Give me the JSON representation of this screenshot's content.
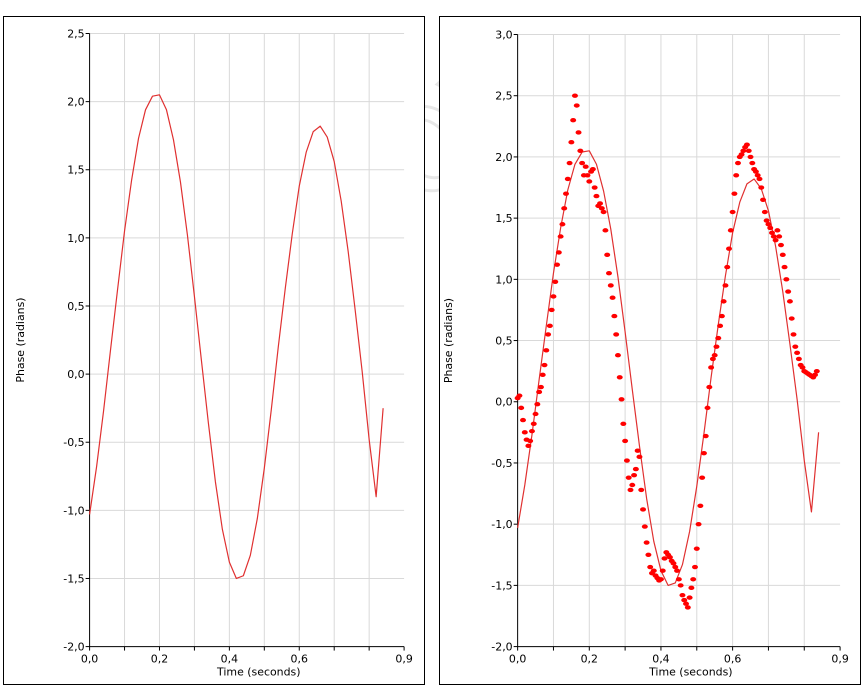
{
  "watermark": {
    "text": "buketov"
  },
  "colors": {
    "curve": "#e03030",
    "points": "#ff0000",
    "grid": "#d9d9d9",
    "axis": "#000000"
  },
  "chart_data": [
    {
      "type": "line",
      "title": "",
      "xlabel": "Time (seconds)",
      "ylabel": "Phase (radians)",
      "xlim": [
        0,
        0.9
      ],
      "ylim": [
        -2.0,
        2.5
      ],
      "x_ticks": [
        "0,0",
        "0,2",
        "0,4",
        "0,6",
        "0,9"
      ],
      "y_ticks": [
        "2,5",
        "2,0",
        "1,5",
        "1,0",
        "0,5",
        "0,0",
        "-0,5",
        "-1,0",
        "-1,5",
        "-2,0"
      ],
      "grid": true,
      "series": [
        {
          "x": [
            0,
            0.02,
            0.04,
            0.06,
            0.08,
            0.1,
            0.12,
            0.14,
            0.16,
            0.18,
            0.2,
            0.22,
            0.24,
            0.26,
            0.28,
            0.3,
            0.32,
            0.34,
            0.36,
            0.38,
            0.4,
            0.42,
            0.44,
            0.46,
            0.48,
            0.5,
            0.52,
            0.54,
            0.56,
            0.58,
            0.6,
            0.62,
            0.64,
            0.66,
            0.68,
            0.7,
            0.72,
            0.74,
            0.76,
            0.78,
            0.8,
            0.82,
            0.84
          ],
          "y": [
            -1.03,
            -0.68,
            -0.27,
            0.18,
            0.62,
            1.05,
            1.42,
            1.73,
            1.94,
            2.04,
            2.05,
            1.94,
            1.72,
            1.41,
            1.02,
            0.57,
            0.1,
            -0.36,
            -0.79,
            -1.14,
            -1.38,
            -1.5,
            -1.48,
            -1.33,
            -1.06,
            -0.69,
            -0.26,
            0.2,
            0.63,
            1.03,
            1.38,
            1.63,
            1.78,
            1.82,
            1.74,
            1.56,
            1.27,
            0.9,
            0.47,
            0.02,
            -0.48,
            -0.9,
            -0.25
          ]
        }
      ]
    },
    {
      "type": "scatter",
      "title": "",
      "xlabel": "Time (seconds)",
      "ylabel": "Phase (radians)",
      "xlim": [
        0,
        0.9
      ],
      "ylim": [
        -2.0,
        3.0
      ],
      "x_ticks": [
        "0,0",
        "0,2",
        "0,4",
        "0,6",
        "0,9"
      ],
      "y_ticks": [
        "3,0",
        "2,5",
        "2,0",
        "1,5",
        "1,0",
        "0,5",
        "0,0",
        "-0,5",
        "-1,0",
        "-1,5",
        "-2,0"
      ],
      "grid": true,
      "series": [
        {
          "type": "line",
          "x": [
            0,
            0.02,
            0.04,
            0.06,
            0.08,
            0.1,
            0.12,
            0.14,
            0.16,
            0.18,
            0.2,
            0.22,
            0.24,
            0.26,
            0.28,
            0.3,
            0.32,
            0.34,
            0.36,
            0.38,
            0.4,
            0.42,
            0.44,
            0.46,
            0.48,
            0.5,
            0.52,
            0.54,
            0.56,
            0.58,
            0.6,
            0.62,
            0.64,
            0.66,
            0.68,
            0.7,
            0.72,
            0.74,
            0.76,
            0.78,
            0.8,
            0.82,
            0.84
          ],
          "y": [
            -1.03,
            -0.68,
            -0.27,
            0.18,
            0.62,
            1.05,
            1.42,
            1.73,
            1.94,
            2.04,
            2.05,
            1.94,
            1.72,
            1.41,
            1.02,
            0.57,
            0.1,
            -0.36,
            -0.79,
            -1.14,
            -1.38,
            -1.5,
            -1.48,
            -1.33,
            -1.06,
            -0.69,
            -0.26,
            0.2,
            0.63,
            1.03,
            1.38,
            1.63,
            1.78,
            1.82,
            1.74,
            1.56,
            1.27,
            0.9,
            0.47,
            0.02,
            -0.48,
            -0.9,
            -0.25
          ]
        },
        {
          "type": "scatter",
          "x": [
            0.0,
            0.005,
            0.01,
            0.015,
            0.02,
            0.025,
            0.03,
            0.035,
            0.04,
            0.045,
            0.05,
            0.055,
            0.06,
            0.065,
            0.07,
            0.075,
            0.08,
            0.085,
            0.09,
            0.095,
            0.1,
            0.105,
            0.11,
            0.115,
            0.12,
            0.125,
            0.13,
            0.135,
            0.14,
            0.145,
            0.15,
            0.155,
            0.16,
            0.165,
            0.17,
            0.175,
            0.18,
            0.185,
            0.19,
            0.195,
            0.2,
            0.205,
            0.21,
            0.215,
            0.22,
            0.225,
            0.23,
            0.235,
            0.24,
            0.245,
            0.25,
            0.255,
            0.26,
            0.265,
            0.27,
            0.275,
            0.28,
            0.285,
            0.29,
            0.295,
            0.3,
            0.305,
            0.31,
            0.315,
            0.32,
            0.325,
            0.33,
            0.335,
            0.34,
            0.345,
            0.35,
            0.355,
            0.36,
            0.365,
            0.37,
            0.375,
            0.38,
            0.385,
            0.39,
            0.395,
            0.4,
            0.405,
            0.41,
            0.415,
            0.42,
            0.425,
            0.43,
            0.435,
            0.44,
            0.445,
            0.45,
            0.455,
            0.46,
            0.465,
            0.47,
            0.475,
            0.48,
            0.485,
            0.49,
            0.495,
            0.5,
            0.505,
            0.51,
            0.515,
            0.52,
            0.525,
            0.53,
            0.535,
            0.54,
            0.545,
            0.55,
            0.555,
            0.56,
            0.565,
            0.57,
            0.575,
            0.58,
            0.585,
            0.59,
            0.595,
            0.6,
            0.605,
            0.61,
            0.615,
            0.62,
            0.625,
            0.63,
            0.635,
            0.64,
            0.645,
            0.65,
            0.655,
            0.66,
            0.665,
            0.67,
            0.675,
            0.68,
            0.685,
            0.69,
            0.695,
            0.7,
            0.705,
            0.71,
            0.715,
            0.72,
            0.725,
            0.73,
            0.735,
            0.74,
            0.745,
            0.75,
            0.755,
            0.76,
            0.765,
            0.77,
            0.775,
            0.78,
            0.785,
            0.79,
            0.795,
            0.8,
            0.805,
            0.81,
            0.815,
            0.82,
            0.825,
            0.83,
            0.835
          ],
          "y": [
            0.03,
            0.05,
            -0.05,
            -0.15,
            -0.25,
            -0.31,
            -0.36,
            -0.32,
            -0.24,
            -0.18,
            -0.1,
            -0.02,
            0.08,
            0.12,
            0.22,
            0.3,
            0.42,
            0.55,
            0.62,
            0.75,
            0.86,
            0.98,
            1.12,
            1.22,
            1.35,
            1.45,
            1.58,
            1.7,
            1.82,
            1.95,
            2.12,
            2.3,
            2.5,
            2.42,
            2.2,
            2.05,
            1.95,
            1.85,
            1.92,
            1.85,
            1.8,
            1.88,
            1.9,
            1.75,
            1.68,
            1.6,
            1.62,
            1.58,
            1.55,
            1.4,
            1.2,
            1.05,
            0.95,
            0.85,
            0.7,
            0.55,
            0.38,
            0.2,
            0.02,
            -0.18,
            -0.32,
            -0.48,
            -0.62,
            -0.72,
            -0.68,
            -0.6,
            -0.55,
            -0.4,
            -0.45,
            -0.72,
            -0.88,
            -1.02,
            -1.15,
            -1.25,
            -1.35,
            -1.4,
            -1.38,
            -1.42,
            -1.44,
            -1.46,
            -1.45,
            -1.38,
            -1.28,
            -1.23,
            -1.25,
            -1.27,
            -1.3,
            -1.32,
            -1.35,
            -1.38,
            -1.45,
            -1.5,
            -1.58,
            -1.62,
            -1.65,
            -1.68,
            -1.6,
            -1.52,
            -1.45,
            -1.35,
            -1.2,
            -1.0,
            -0.85,
            -0.62,
            -0.42,
            -0.28,
            -0.05,
            0.12,
            0.28,
            0.35,
            0.38,
            0.45,
            0.52,
            0.62,
            0.7,
            0.82,
            0.95,
            1.1,
            1.25,
            1.4,
            1.55,
            1.7,
            1.85,
            1.95,
            2.0,
            2.02,
            2.05,
            2.08,
            2.1,
            2.05,
            2.0,
            1.95,
            1.9,
            1.88,
            1.85,
            1.82,
            1.75,
            1.65,
            1.55,
            1.48,
            1.45,
            1.42,
            1.38,
            1.35,
            1.32,
            1.4,
            1.35,
            1.28,
            1.2,
            1.1,
            1.0,
            0.9,
            0.82,
            0.68,
            0.55,
            0.45,
            0.4,
            0.35,
            0.3,
            0.28,
            0.25,
            0.24,
            0.23,
            0.22,
            0.21,
            0.2,
            0.22,
            0.25
          ]
        }
      ]
    }
  ]
}
